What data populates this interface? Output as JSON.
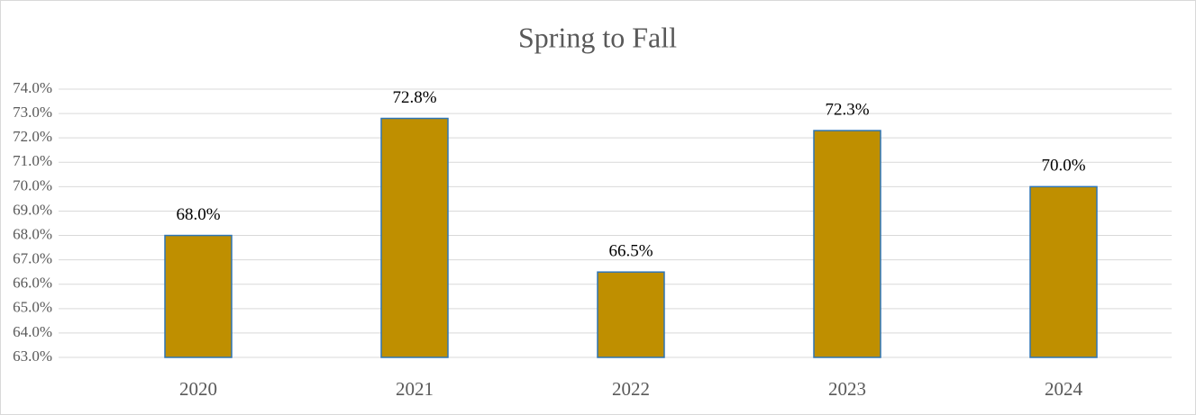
{
  "chart_data": {
    "type": "bar",
    "title": "Spring to Fall",
    "categories": [
      "2020",
      "2021",
      "2022",
      "2023",
      "2024"
    ],
    "values": [
      68.0,
      72.8,
      66.5,
      72.3,
      70.0
    ],
    "value_labels": [
      "68.0%",
      "72.8%",
      "66.5%",
      "72.3%",
      "70.0%"
    ],
    "color": "#bf8f00",
    "edge_color": "#2e75b6",
    "ylim": [
      63,
      74
    ],
    "yticks": [
      {
        "value": 63,
        "label": "63.0%"
      },
      {
        "value": 64,
        "label": "64.0%"
      },
      {
        "value": 65,
        "label": "65.0%"
      },
      {
        "value": 66,
        "label": "66.0%"
      },
      {
        "value": 67,
        "label": "67.0%"
      },
      {
        "value": 68,
        "label": "68.0%"
      },
      {
        "value": 69,
        "label": "69.0%"
      },
      {
        "value": 70,
        "label": "70.0%"
      },
      {
        "value": 71,
        "label": "71.0%"
      },
      {
        "value": 72,
        "label": "72.0%"
      },
      {
        "value": 73,
        "label": "73.0%"
      },
      {
        "value": 74,
        "label": "74.0%"
      }
    ],
    "grid": true
  }
}
